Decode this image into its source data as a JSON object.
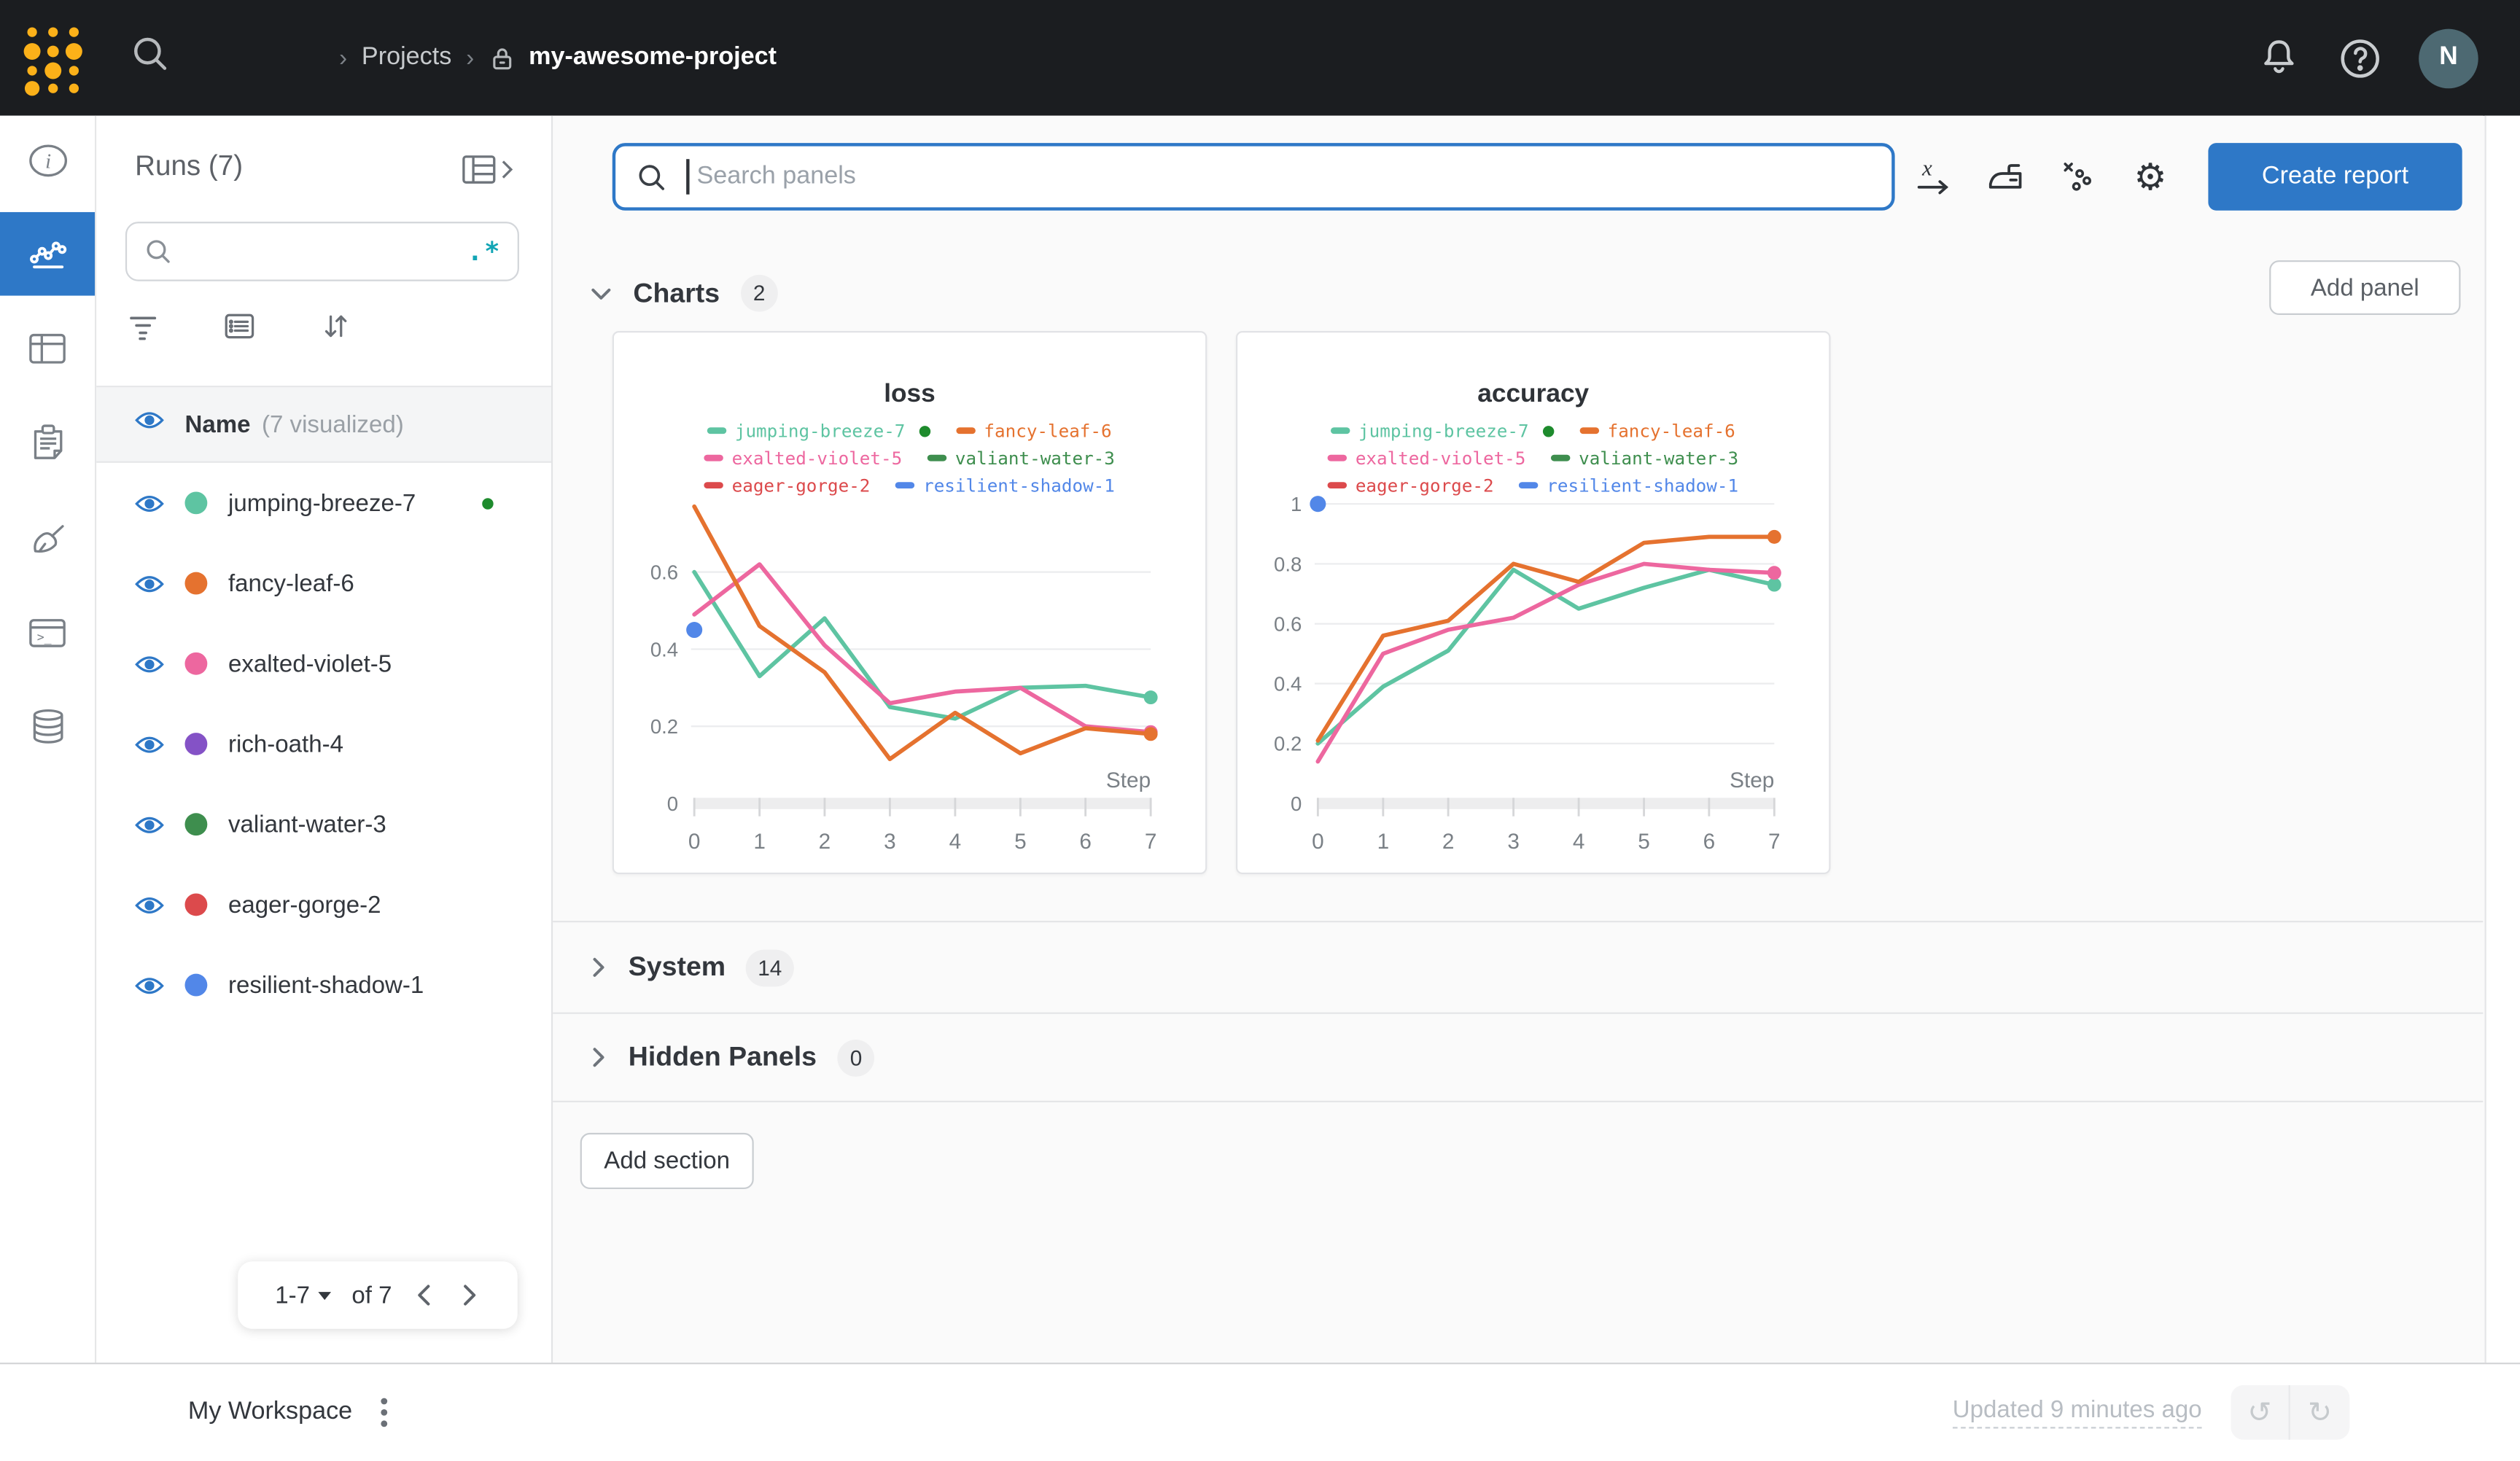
{
  "navbar": {
    "breadcrumb_sep": "›",
    "section": "Projects",
    "project": "my-awesome-project",
    "avatar_initial": "N"
  },
  "left_rail": {
    "items": [
      "overview",
      "workspace",
      "runs-table",
      "logs",
      "sweeps",
      "terminal",
      "artifacts"
    ],
    "active": "workspace",
    "active_color": "#2e78c7"
  },
  "runs_panel": {
    "title": "Runs (7)",
    "regex_glyph": ".*",
    "search_placeholder": "",
    "header_label": "Name",
    "header_sublabel": "(7 visualized)",
    "runs": [
      {
        "name": "jumping-breeze-7",
        "color": "#5ec4a2",
        "running": true
      },
      {
        "name": "fancy-leaf-6",
        "color": "#e5722f",
        "running": false
      },
      {
        "name": "exalted-violet-5",
        "color": "#ed679f",
        "running": false
      },
      {
        "name": "rich-oath-4",
        "color": "#8452c6",
        "running": false
      },
      {
        "name": "valiant-water-3",
        "color": "#3e8e4e",
        "running": false
      },
      {
        "name": "eager-gorge-2",
        "color": "#dc4a4c",
        "running": false
      },
      {
        "name": "resilient-shadow-1",
        "color": "#5287e8",
        "running": false
      }
    ],
    "pagination": {
      "range_label": "1-7",
      "total_label": "of 7"
    }
  },
  "toolbar": {
    "search_placeholder": "Search panels",
    "create_report_label": "Create report",
    "add_panel_label": "Add panel"
  },
  "sections": {
    "charts": {
      "label": "Charts",
      "count": "2"
    },
    "system": {
      "label": "System",
      "count": "14"
    },
    "hidden": {
      "label": "Hidden Panels",
      "count": "0"
    }
  },
  "add_section_label": "Add section",
  "footer": {
    "workspace_label": "My Workspace",
    "updated_label": "Updated 9 minutes ago"
  },
  "chart_data": [
    {
      "type": "line",
      "title": "loss",
      "xlabel": "Step",
      "x": [
        0,
        1,
        2,
        3,
        4,
        5,
        6,
        7
      ],
      "ylim": [
        0,
        0.8
      ],
      "yticks": [
        0,
        0.2,
        0.4,
        0.6
      ],
      "grid": true,
      "legend_position": "top",
      "legend": [
        {
          "name": "jumping-breeze-7",
          "color": "#5ec4a2",
          "running": true
        },
        {
          "name": "fancy-leaf-6",
          "color": "#e5722f"
        },
        {
          "name": "exalted-violet-5",
          "color": "#ed679f"
        },
        {
          "name": "valiant-water-3",
          "color": "#3e8e4e"
        },
        {
          "name": "eager-gorge-2",
          "color": "#dc4a4c"
        },
        {
          "name": "resilient-shadow-1",
          "color": "#5287e8"
        }
      ],
      "series": [
        {
          "name": "jumping-breeze-7",
          "color": "#5ec4a2",
          "values": [
            0.6,
            0.33,
            0.48,
            0.25,
            0.22,
            0.3,
            0.305,
            0.275
          ]
        },
        {
          "name": "exalted-violet-5",
          "color": "#ed679f",
          "values": [
            0.49,
            0.62,
            0.41,
            0.26,
            0.29,
            0.3,
            0.2,
            0.185
          ]
        },
        {
          "name": "fancy-leaf-6",
          "color": "#e5722f",
          "values": [
            0.77,
            0.46,
            0.34,
            0.115,
            0.235,
            0.13,
            0.195,
            0.18
          ]
        },
        {
          "name": "resilient-shadow-1",
          "color": "#5287e8",
          "values": [
            0.45
          ],
          "point_only": true
        }
      ]
    },
    {
      "type": "line",
      "title": "accuracy",
      "xlabel": "Step",
      "x": [
        0,
        1,
        2,
        3,
        4,
        5,
        6,
        7
      ],
      "ylim": [
        0,
        1.03
      ],
      "yticks": [
        0,
        0.2,
        0.4,
        0.6,
        0.8,
        1
      ],
      "grid": true,
      "legend_position": "top",
      "legend": [
        {
          "name": "jumping-breeze-7",
          "color": "#5ec4a2",
          "running": true
        },
        {
          "name": "fancy-leaf-6",
          "color": "#e5722f"
        },
        {
          "name": "exalted-violet-5",
          "color": "#ed679f"
        },
        {
          "name": "valiant-water-3",
          "color": "#3e8e4e"
        },
        {
          "name": "eager-gorge-2",
          "color": "#dc4a4c"
        },
        {
          "name": "resilient-shadow-1",
          "color": "#5287e8"
        }
      ],
      "series": [
        {
          "name": "jumping-breeze-7",
          "color": "#5ec4a2",
          "values": [
            0.2,
            0.39,
            0.51,
            0.78,
            0.65,
            0.72,
            0.78,
            0.73
          ]
        },
        {
          "name": "exalted-violet-5",
          "color": "#ed679f",
          "values": [
            0.14,
            0.5,
            0.58,
            0.62,
            0.73,
            0.8,
            0.78,
            0.77
          ]
        },
        {
          "name": "fancy-leaf-6",
          "color": "#e5722f",
          "values": [
            0.21,
            0.56,
            0.61,
            0.8,
            0.74,
            0.87,
            0.89,
            0.89
          ]
        },
        {
          "name": "resilient-shadow-1",
          "color": "#5287e8",
          "values": [
            1.0
          ],
          "point_only": true
        }
      ]
    }
  ]
}
